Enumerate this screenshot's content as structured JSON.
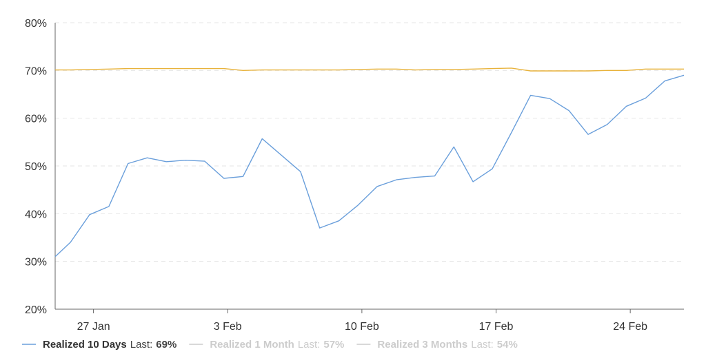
{
  "chart_data": {
    "type": "line",
    "title": "",
    "xlabel": "",
    "ylabel": "",
    "y_tick_labels": [
      "20%",
      "30%",
      "40%",
      "50%",
      "60%",
      "70%",
      "80%"
    ],
    "y_ticks": [
      20,
      30,
      40,
      50,
      60,
      70,
      80
    ],
    "ylim": [
      20,
      80
    ],
    "x_tick_labels": [
      "27 Jan",
      "3 Feb",
      "10 Feb",
      "17 Feb",
      "24 Feb"
    ],
    "x_tick_positions": [
      2,
      9,
      16,
      23,
      30
    ],
    "xlim": [
      0,
      32.8
    ],
    "grid": "horizontal dashed",
    "legend_position": "bottom-left",
    "legend_prefix": "Last:",
    "series": [
      {
        "name": "Realized 10 Days",
        "last": "69%",
        "color": "#6a9fdb",
        "visible": true,
        "x": [
          0,
          0.8,
          1.8,
          2.8,
          3.8,
          4.8,
          5.8,
          6.8,
          7.8,
          8.8,
          9.8,
          10.8,
          12.8,
          13.8,
          14.8,
          15.8,
          16.8,
          17.8,
          18.8,
          19.8,
          20.8,
          21.8,
          22.8,
          23.8,
          24.8,
          25.8,
          26.8,
          27.8,
          28.8,
          29.8,
          30.8,
          31.8,
          32.8
        ],
        "y": [
          31,
          34,
          39.8,
          41.5,
          50.5,
          51.7,
          50.9,
          51.2,
          51,
          47.4,
          47.8,
          55.7,
          48.8,
          37,
          38.5,
          41.8,
          45.7,
          47.1,
          47.6,
          47.9,
          54,
          46.7,
          49.4,
          57,
          64.8,
          64.1,
          61.6,
          56.6,
          58.7,
          62.5,
          64.2,
          67.8,
          69
        ]
      },
      {
        "name": "Realized 1 Month",
        "last": "57%",
        "color": "#d9dde2",
        "visible": false,
        "x": [],
        "y": []
      },
      {
        "name": "Realized 3 Months",
        "last": "54%",
        "color": "#d9dde2",
        "visible": false,
        "x": [],
        "y": []
      },
      {
        "name": "",
        "last": "",
        "color": "#e8b23a",
        "visible": true,
        "x": [
          0,
          0.8,
          1.8,
          2.8,
          3.8,
          4.8,
          5.8,
          6.8,
          7.8,
          8.8,
          9.8,
          10.8,
          11.8,
          12.8,
          13.8,
          14.8,
          15.8,
          16.8,
          17.8,
          18.8,
          19.8,
          20.8,
          21.8,
          22.8,
          23.8,
          24.8,
          25.8,
          26.8,
          27.8,
          28.8,
          29.8,
          30.8,
          31.8,
          32.8
        ],
        "y": [
          70.1,
          70.1,
          70.2,
          70.3,
          70.4,
          70.4,
          70.4,
          70.4,
          70.4,
          70.4,
          70.0,
          70.1,
          70.1,
          70.1,
          70.1,
          70.1,
          70.2,
          70.3,
          70.3,
          70.1,
          70.2,
          70.2,
          70.3,
          70.4,
          70.5,
          69.9,
          69.9,
          69.9,
          69.9,
          70.0,
          70.0,
          70.3,
          70.3,
          70.3
        ]
      }
    ]
  }
}
